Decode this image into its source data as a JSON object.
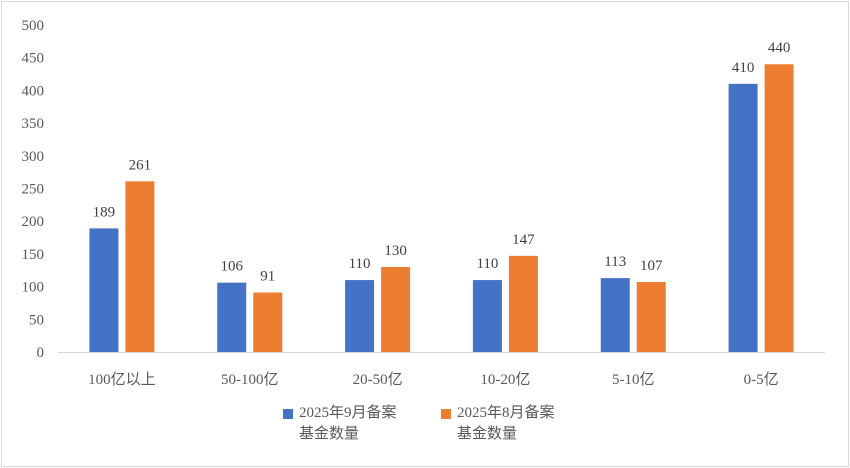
{
  "chart_data": {
    "type": "bar",
    "categories": [
      "100亿以上",
      "50-100亿",
      "20-50亿",
      "10-20亿",
      "5-10亿",
      "0-5亿"
    ],
    "series": [
      {
        "name_line1": "2025年9月备案",
        "name_line2": "基金数量",
        "color": "#4472c4",
        "values": [
          189,
          106,
          110,
          110,
          113,
          410
        ]
      },
      {
        "name_line1": "2025年8月备案",
        "name_line2": "基金数量",
        "color": "#ed7d31",
        "values": [
          261,
          91,
          130,
          147,
          107,
          440
        ]
      }
    ],
    "ylim": [
      0,
      500
    ],
    "yticks": [
      "0",
      "50",
      "100",
      "150",
      "200",
      "250",
      "300",
      "350",
      "400",
      "450",
      "500"
    ],
    "grid": false,
    "legend_position": "bottom"
  }
}
